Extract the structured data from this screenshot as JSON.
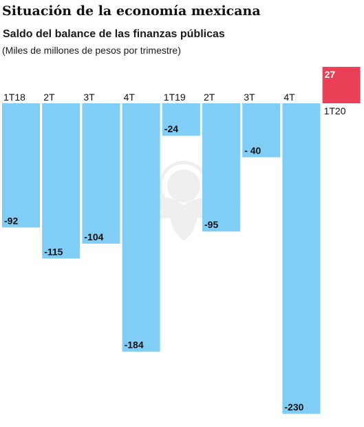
{
  "header": {
    "title": "Situación de la economía mexicana",
    "subtitle": "Saldo del balance de las finanzas públicas",
    "units": "(Miles de millones de pesos por trimestre)"
  },
  "watermark": {
    "icon": "eagle-seal-icon"
  },
  "colors": {
    "negative": "#80cdf6",
    "positive": "#ea3f57",
    "text": "#111111"
  },
  "chart_data": {
    "type": "bar",
    "categories": [
      "1T18",
      "2T",
      "3T",
      "4T",
      "1T19",
      "2T",
      "3T",
      "4T",
      "1T20"
    ],
    "values": [
      -92,
      -115,
      -104,
      -184,
      -24,
      -95,
      -40,
      -230,
      27
    ],
    "value_labels": [
      "-92",
      "-115",
      "-104",
      "-184",
      "-24",
      "-95",
      "- 40",
      "-230",
      "27"
    ],
    "title": "Saldo del balance de las finanzas públicas",
    "ylabel": "",
    "xlabel": "",
    "ylim": [
      -230,
      27
    ],
    "grid": false
  }
}
